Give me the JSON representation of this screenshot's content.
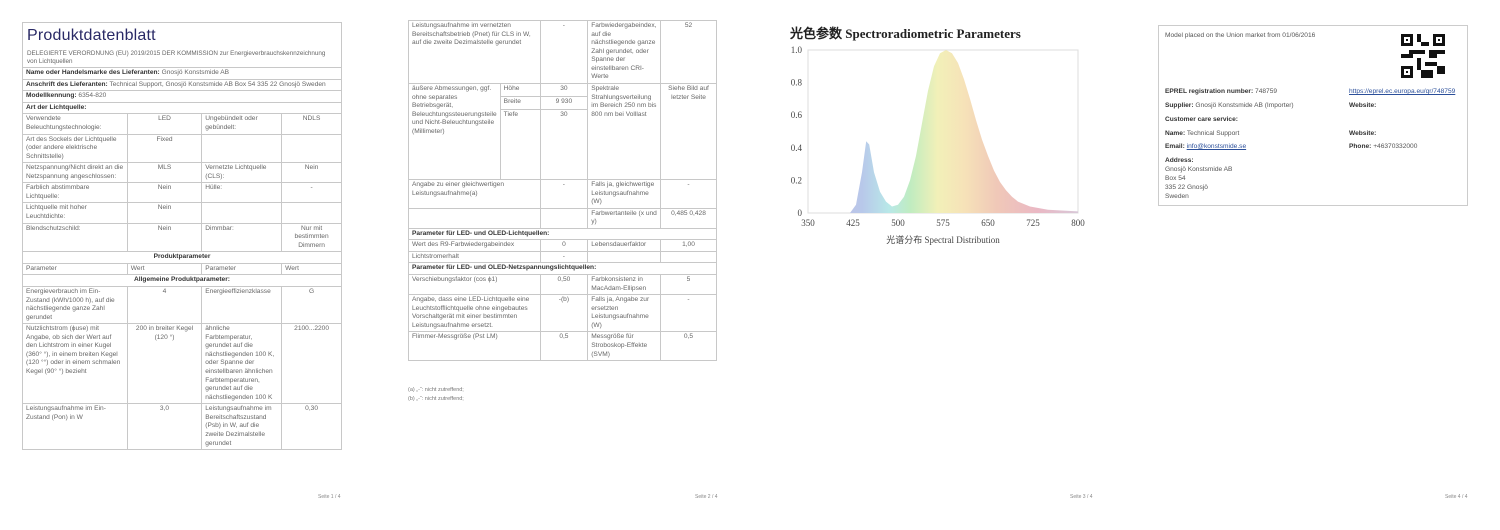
{
  "page1": {
    "title": "Produktdatenblatt",
    "regulation": "DELEGIERTE VERORDNUNG (EU) 2019/2015 DER KOMMISSION zur Energieverbrauchskennzeichnung von Lichtquellen",
    "supplier_label": "Name oder Handelsmarke des Lieferanten:",
    "supplier_value": "Gnosjö Konstsmide AB",
    "address_label": "Anschrift des Lieferanten:",
    "address_value": "Technical Support, Gnosjö Konstsmide AB Box 54 335 22 Gnosjö Sweden",
    "model_label": "Modellkennung:",
    "model_value": "6354-820",
    "type_label": "Art der Lichtquelle:",
    "type_rows": [
      [
        "Verwendete Beleuchtungstechnologie:",
        "LED",
        "Ungebündelt oder gebündelt:",
        "NDLS"
      ],
      [
        "Art des Sockels der Lichtquelle (oder andere elektrische Schnittstelle)",
        "Fixed",
        "",
        ""
      ],
      [
        "Netzspannung/Nicht direkt an die Netzspannung angeschlossen:",
        "MLS",
        "Vernetzte Lichtquelle (CLS):",
        "Nein"
      ],
      [
        "Farblich abstimmbare Lichtquelle:",
        "Nein",
        "Hülle:",
        "-"
      ],
      [
        "Lichtquelle mit hoher Leuchtdichte:",
        "Nein",
        "",
        ""
      ],
      [
        "Blendschutzschild:",
        "Nein",
        "Dimmbar:",
        "Nur mit bestimmten Dimmern"
      ]
    ],
    "params_header": "Produktparameter",
    "col_headers": [
      "Parameter",
      "Wert",
      "Parameter",
      "Wert"
    ],
    "general_header": "Allgemeine Produktparameter:",
    "general_rows": [
      [
        "Energieverbrauch im Ein-Zustand (kWh/1000 h), auf die nächstliegende ganze Zahl gerundet",
        "4",
        "Energieeffizienzklasse",
        "G"
      ],
      [
        "Nutzlichtstrom (ϕuse) mit Angabe, ob sich der Wert auf den Lichtstrom in einer Kugel (360° °), in einem breiten Kegel (120 °°) oder in einem schmalen Kegel (90° °) bezieht",
        "200 in breiter Kegel (120 °)",
        "ähnliche Farbtemperatur, gerundet auf die nächstliegenden 100 K, oder Spanne der einstellbaren ähnlichen Farbtemperaturen, gerundet auf die nächstliegenden 100 K",
        "2100...2200"
      ],
      [
        "Leistungsaufnahme im Ein-Zustand (Pon) in W",
        "3,0",
        "Leistungsaufnahme im Bereitschaftszustand (Psb) in W, auf die zweite Dezimalstelle gerundet",
        "0,30"
      ]
    ],
    "footer": "Seite 1 / 4"
  },
  "page2": {
    "row1": [
      "Leistungsaufnahme im vernetzten Bereitschaftsbetrieb (Pnet) für CLS in W, auf die zweite Dezimalstelle gerundet",
      "-",
      "Farbwiedergabeindex, auf die nächstliegende ganze Zahl gerundet, oder Spanne der einstellbaren CRI-Werte",
      "52"
    ],
    "dim_label": "äußere Abmessungen, ggf. ohne separates Betriebsgerät, Beleuchtungssteuerungsteile und Nicht-Beleuchtungsteile (Millimeter)",
    "dims": [
      [
        "Höhe",
        "30"
      ],
      [
        "Breite",
        "9 930"
      ],
      [
        "Tiefe",
        "30"
      ]
    ],
    "spectral_label": "Spektrale Strahlungsverteilung im Bereich 250 nm bis 800 nm bei Volllast",
    "spectral_value": "Siehe Bild auf letzter Seite",
    "row3": [
      "Angabe zu einer gleichwertigen Leistungsaufnahme(a)",
      "-",
      "Falls ja, gleichwertige Leistungsaufnahme (W)",
      "-"
    ],
    "row4": [
      "",
      "",
      "Farbwertanteile (x und y)",
      "0,485 0,428"
    ],
    "led_header": "Parameter für LED- und OLED-Lichtquellen:",
    "led_rows": [
      [
        "Wert des R9-Farbwiedergabeindex",
        "0",
        "Lebensdauerfaktor",
        "1,00"
      ],
      [
        "Lichtstromerhalt",
        "-",
        "",
        ""
      ]
    ],
    "mains_header": "Parameter für LED- und OLED-Netzspannungslichtquellen:",
    "mains_rows": [
      [
        "Verschiebungsfaktor (cos ϕ1)",
        "0,50",
        "Farbkonsistenz in MacAdam-Ellipsen",
        "5"
      ],
      [
        "Angabe, dass eine LED-Lichtquelle eine Leuchtstofflichtquelle ohne eingebautes Vorschaltgerät mit einer bestimmten Leistungsaufnahme ersetzt.",
        "-(b)",
        "Falls ja, Angabe zur ersetzten Leistungsaufnahme (W)",
        "-"
      ],
      [
        "Flimmer-Messgröße (Pst LM)",
        "0,5",
        "Messgröße für Stroboskop-Effekte (SVM)",
        "0,5"
      ]
    ],
    "footnotes": [
      "(a) „-“: nicht zutreffend;",
      "(b) „-“: nicht zutreffend;"
    ],
    "footer": "Seite 2 / 4"
  },
  "page3": {
    "footer": "Seite 3 / 4",
    "chart_data": {
      "type": "area",
      "title": "光色参数 Spectroradiometric Parameters",
      "xlabel": "光谱分布 Spectral Distribution",
      "ylabel": "",
      "xlim": [
        350,
        800
      ],
      "ylim": [
        0,
        1.0
      ],
      "xticks": [
        "350",
        "425",
        "500",
        "575",
        "650",
        "725",
        "800"
      ],
      "yticks": [
        "0",
        "0.2",
        "0.4",
        "0.6",
        "0.8",
        "1.0"
      ],
      "grid": false,
      "x": [
        350,
        420,
        430,
        440,
        447,
        452,
        460,
        470,
        480,
        490,
        500,
        510,
        520,
        530,
        540,
        550,
        560,
        570,
        580,
        590,
        600,
        610,
        620,
        630,
        640,
        650,
        660,
        670,
        680,
        690,
        700,
        720,
        750,
        800
      ],
      "y": [
        0,
        0,
        0.05,
        0.25,
        0.44,
        0.42,
        0.25,
        0.13,
        0.07,
        0.04,
        0.05,
        0.1,
        0.2,
        0.35,
        0.55,
        0.75,
        0.9,
        0.98,
        1.0,
        0.98,
        0.92,
        0.82,
        0.7,
        0.57,
        0.45,
        0.35,
        0.26,
        0.19,
        0.14,
        0.1,
        0.07,
        0.04,
        0.02,
        0.01
      ],
      "fill": "spectral rainbow gradient"
    }
  },
  "page4": {
    "market": "Model placed on the Union market from 01/06/2016",
    "eprel_label": "EPREL registration number:",
    "eprel_value": "748759",
    "eprel_url": "https://eprel.ec.europa.eu/qr/748759",
    "supplier_label": "Supplier:",
    "supplier_value": "Gnosjö Konstsmide AB (Importer)",
    "website_label": "Website:",
    "care_label": "Customer care service:",
    "name_label": "Name:",
    "name_value": "Technical Support",
    "website2_label": "Website:",
    "email_label": "Email:",
    "email_value": "info@konstsmide.se",
    "phone_label": "Phone:",
    "phone_value": "+46370332000",
    "address_label": "Address:",
    "address_lines": [
      "Gnosjö Konstsmide AB",
      "Box 54",
      "335 22 Gnosjö",
      "Sweden"
    ],
    "footer": "Seite 4 / 4"
  }
}
